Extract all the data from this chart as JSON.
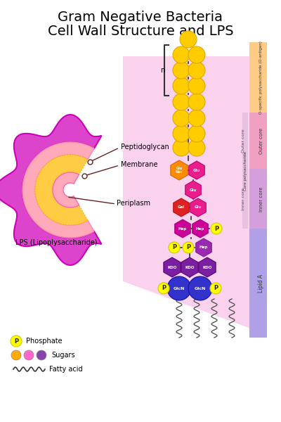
{
  "title_line1": "Gram Negative Bacteria",
  "title_line2": "Cell Wall Structure and LPS",
  "title_fontsize": 14,
  "bg_color": "#ffffff",
  "labels": {
    "peptidoglycan": "Peptidoglycan",
    "membrane": "Membrane",
    "periplasm": "Periplasm",
    "lps": "LPS (Lipoplysaccharide)",
    "phosphate": "Phosphate",
    "sugars": "Sugars",
    "fatty_acid": "Fatty acid"
  },
  "legend_p_color": "#ffff00",
  "legend_sugar_colors": [
    "#ffaa00",
    "#ff66cc",
    "#8844aa"
  ],
  "section_colors": {
    "lipid_a": "#b388ff",
    "inner_core": "#ce93d8",
    "outer_core": "#f48fb1",
    "o_antigen": "#ffcc80"
  },
  "node_colors": {
    "blue": "#3333cc",
    "purple": "#7b1fa2",
    "magenta": "#cc0099",
    "red": "#dd2222",
    "pink": "#e91e8c",
    "orange": "#ff8c00",
    "yellow_orange": "#ffb300",
    "yellow": "#ffdd00"
  }
}
